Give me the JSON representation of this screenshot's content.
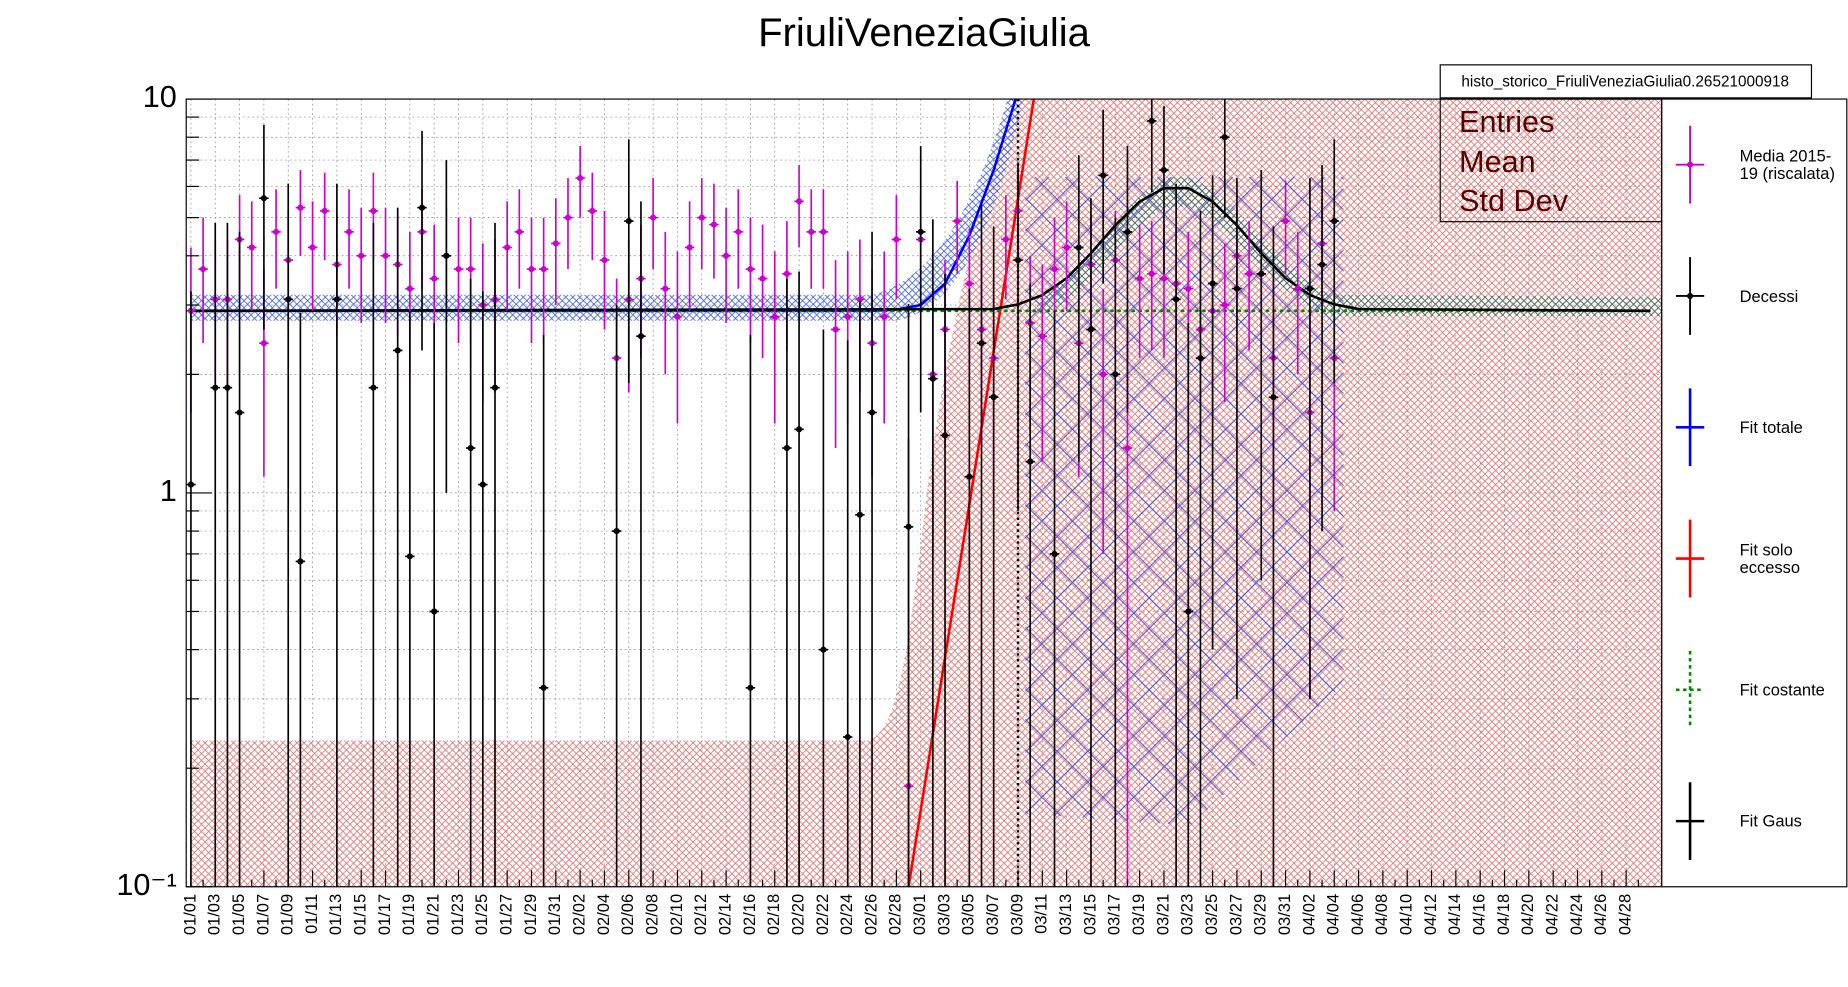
{
  "chart_data": {
    "type": "line",
    "title": "FriuliVeneziaGiulia",
    "histogram_name": "histo_storico_FriuliVeneziaGiulia0.26521000918",
    "stats_box": [
      "Entries",
      "Mean",
      "Std Dev"
    ],
    "log_scale_y": true,
    "grid": true,
    "legend": "right",
    "ylim": [
      0.1,
      10
    ],
    "yticks": [
      {
        "value": 0.1,
        "label": "10⁻¹"
      },
      1,
      10
    ],
    "yminorticks": [
      0.2,
      0.3,
      0.4,
      0.5,
      0.6,
      0.7,
      0.8,
      0.9,
      2,
      3,
      4,
      5,
      6,
      7,
      8,
      9
    ],
    "categories": [
      "01/01",
      null,
      "01/03",
      null,
      "01/05",
      null,
      "01/07",
      null,
      "01/09",
      null,
      "01/11",
      null,
      "01/13",
      null,
      "01/15",
      null,
      "01/17",
      null,
      "01/19",
      null,
      "01/21",
      null,
      "01/23",
      null,
      "01/25",
      null,
      "01/27",
      null,
      "01/29",
      null,
      "01/31",
      null,
      "02/02",
      null,
      "02/04",
      null,
      "02/06",
      null,
      "02/08",
      null,
      "02/10",
      null,
      "02/12",
      null,
      "02/14",
      null,
      "02/16",
      null,
      "02/18",
      null,
      "02/20",
      null,
      "02/22",
      null,
      "02/24",
      null,
      "02/26",
      null,
      "02/28",
      null,
      "03/01",
      null,
      "03/03",
      null,
      "03/05",
      null,
      "03/07",
      null,
      "03/09",
      null,
      "03/11",
      null,
      "03/13",
      null,
      "03/15",
      null,
      "03/17",
      null,
      "03/19",
      null,
      "03/21",
      null,
      "03/23",
      null,
      "03/25",
      null,
      "03/27",
      null,
      "03/29",
      null,
      "03/31",
      null,
      "04/02",
      null,
      "04/04",
      null,
      "04/06",
      null,
      "04/08",
      null,
      "04/10",
      null,
      "04/12",
      null,
      "04/14",
      null,
      "04/16",
      null,
      "04/18",
      null,
      "04/20",
      null,
      "04/22",
      null,
      "04/24",
      null,
      "04/26",
      null,
      "04/28",
      null
    ],
    "series": [
      {
        "name": "Media 2015-19 (riscalata)",
        "color": "#cc00cc",
        "values": [
          2.9,
          3.7,
          3.1,
          3.1,
          4.4,
          4.2,
          2.4,
          4.6,
          3.9,
          5.3,
          4.2,
          5.2,
          3.8,
          4.6,
          4.0,
          5.2,
          4.0,
          3.8,
          3.3,
          4.6,
          3.5,
          4.0,
          3.7,
          3.7,
          3.0,
          3.1,
          4.2,
          4.6,
          3.7,
          3.7,
          4.3,
          5.0,
          6.3,
          5.2,
          3.9,
          2.2,
          3.1,
          3.5,
          5.0,
          3.3,
          2.8,
          4.2,
          5.0,
          4.8,
          4.0,
          4.6,
          3.7,
          3.5,
          2.8,
          3.6,
          5.5,
          4.6,
          4.6,
          2.6,
          2.8,
          3.1,
          2.4,
          2.8,
          4.4,
          0.18,
          4.4,
          2.0,
          2.6,
          4.9,
          3.4,
          2.6,
          2.2,
          4.4,
          5.2,
          2.7,
          2.5,
          3.7,
          4.2,
          2.4,
          3.8,
          2.0,
          3.9,
          1.3,
          3.5,
          3.6,
          3.5,
          3.4,
          3.3,
          2.6,
          2.9,
          3.0,
          4.0,
          3.6,
          3.6,
          2.2,
          4.9,
          3.3,
          1.6,
          4.3,
          2.2,
          null,
          null,
          null,
          null,
          null,
          null,
          null,
          null,
          null,
          null,
          null,
          null,
          null,
          null,
          null,
          null,
          null,
          null,
          null,
          null,
          null,
          null,
          null,
          null,
          null
        ],
        "errors": [
          1.3,
          1.3,
          1.3,
          1.3,
          1.3,
          1.3,
          1.3,
          1.3,
          1.3,
          1.3,
          1.3,
          1.3,
          1.3,
          1.3,
          1.3,
          1.3,
          1.3,
          1.3,
          1.3,
          1.3,
          1.3,
          1.3,
          1.3,
          1.3,
          1.3,
          1.3,
          1.3,
          1.3,
          1.3,
          1.3,
          1.3,
          1.3,
          1.3,
          1.3,
          1.3,
          1.3,
          1.3,
          1.3,
          1.3,
          1.3,
          1.3,
          1.3,
          1.3,
          1.3,
          1.3,
          1.3,
          1.3,
          1.3,
          1.3,
          1.3,
          1.3,
          1.3,
          1.3,
          1.3,
          1.3,
          1.3,
          1.3,
          1.3,
          1.3,
          1.2,
          1.3,
          1.3,
          1.3,
          1.3,
          1.3,
          1.3,
          1.3,
          1.3,
          1.3,
          1.3,
          1.3,
          1.3,
          1.3,
          1.3,
          1.3,
          1.3,
          1.3,
          1.3,
          1.3,
          1.3,
          1.3,
          1.3,
          1.3,
          1.3,
          1.3,
          1.3,
          1.3,
          1.3,
          1.3,
          1.3,
          1.3,
          1.3,
          1.3,
          1.3,
          1.3,
          null,
          null,
          null,
          null,
          null,
          null,
          null,
          null,
          null,
          null,
          null,
          null,
          null,
          null,
          null,
          null,
          null,
          null,
          null,
          null,
          null,
          null,
          null,
          null,
          null
        ]
      },
      {
        "name": "Decessi",
        "color": "#000000",
        "values": [
          1.05,
          null,
          1.85,
          1.85,
          1.6,
          null,
          5.6,
          null,
          3.1,
          0.67,
          null,
          null,
          3.1,
          null,
          null,
          1.85,
          null,
          2.3,
          0.69,
          5.3,
          0.5,
          4.0,
          null,
          1.3,
          1.05,
          1.85,
          null,
          null,
          null,
          0.32,
          null,
          null,
          null,
          null,
          null,
          0.8,
          4.9,
          2.5,
          null,
          null,
          null,
          null,
          null,
          null,
          null,
          null,
          0.32,
          null,
          null,
          1.3,
          1.45,
          null,
          0.4,
          null,
          0.24,
          0.88,
          1.6,
          null,
          null,
          0.82,
          4.6,
          1.95,
          1.4,
          null,
          1.1,
          2.4,
          1.75,
          null,
          3.9,
          1.2,
          null,
          0.7,
          null,
          4.2,
          2.6,
          6.4,
          2.0,
          4.6,
          null,
          8.8,
          6.6,
          3.1,
          0.5,
          2.2,
          3.4,
          8.0,
          3.3,
          null,
          3.6,
          1.75,
          null,
          null,
          3.3,
          3.8,
          4.9,
          null,
          null,
          null,
          null,
          null,
          null,
          null,
          null,
          null,
          null,
          null,
          null,
          null,
          null,
          null,
          null,
          null,
          null,
          null,
          null,
          null,
          null,
          null,
          null,
          null
        ],
        "errors": [
          2.2,
          null,
          3.0,
          3.0,
          3.0,
          null,
          3.0,
          null,
          3.0,
          2.2,
          null,
          null,
          3.0,
          null,
          null,
          3.0,
          null,
          3.0,
          2.2,
          3.0,
          2.2,
          3.0,
          null,
          2.2,
          2.2,
          3.0,
          null,
          null,
          null,
          2.2,
          null,
          null,
          null,
          null,
          null,
          2.2,
          3.0,
          3.0,
          null,
          null,
          null,
          null,
          null,
          null,
          null,
          null,
          2.2,
          null,
          null,
          2.2,
          2.2,
          null,
          2.2,
          null,
          2.2,
          2.2,
          3.0,
          null,
          null,
          2.2,
          3.0,
          3.0,
          2.2,
          null,
          2.2,
          3.0,
          3.0,
          null,
          3.0,
          2.2,
          null,
          2.2,
          null,
          3.0,
          3.0,
          3.0,
          3.0,
          3.0,
          null,
          3.0,
          3.0,
          3.0,
          2.2,
          3.0,
          3.0,
          3.0,
          3.0,
          null,
          3.0,
          3.0,
          null,
          null,
          3.0,
          3.0,
          3.0,
          null,
          null,
          null,
          null,
          null,
          null,
          null,
          null,
          null,
          null,
          null,
          null,
          null,
          null,
          null,
          null,
          null,
          null,
          null,
          null,
          null,
          null,
          null,
          null,
          null
        ]
      }
    ],
    "fits": [
      {
        "name": "Fit totale",
        "color": "#0000ff",
        "x": [
          0,
          56,
          58,
          60,
          62,
          64,
          66,
          67.8
        ],
        "values": [
          2.9,
          2.9,
          2.92,
          3.0,
          3.4,
          4.5,
          6.6,
          10
        ]
      },
      {
        "name": "Fit solo eccesso",
        "color": "#ff0000",
        "x": [
          59,
          69.3
        ],
        "values": [
          0.1,
          10
        ]
      },
      {
        "name": "Fit costante",
        "color": "#008800",
        "x": [
          0,
          120
        ],
        "values": [
          2.9,
          2.9
        ]
      },
      {
        "name": "Fit Gaus",
        "color": "#000000",
        "x": [
          0,
          66,
          68,
          70,
          72,
          74,
          76,
          78,
          80,
          82,
          84,
          86,
          88,
          90,
          92,
          94,
          96,
          120
        ],
        "values": [
          2.9,
          2.93,
          3.01,
          3.18,
          3.51,
          4.06,
          4.78,
          5.49,
          5.94,
          5.94,
          5.49,
          4.78,
          4.06,
          3.51,
          3.18,
          3.01,
          2.93,
          2.9
        ]
      }
    ],
    "vline_x": 68
  }
}
